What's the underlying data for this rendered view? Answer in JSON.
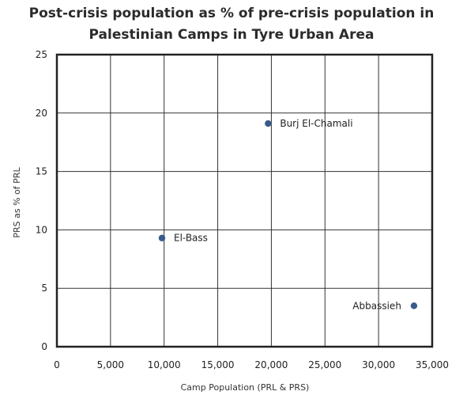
{
  "chart_data": {
    "type": "scatter",
    "title_lines": [
      "Post-crisis population as % of pre-crisis population in",
      "Palestinian Camps in Tyre Urban Area"
    ],
    "xlabel": "Camp Population (PRL & PRS)",
    "ylabel": "PRS as % of PRL",
    "xlim": [
      0,
      35000
    ],
    "ylim": [
      0,
      25
    ],
    "x_ticks": [
      0,
      5000,
      10000,
      15000,
      20000,
      25000,
      30000,
      35000
    ],
    "x_tick_labels": [
      "0",
      "5,000",
      "10,000",
      "15,000",
      "20,000",
      "25,000",
      "30,000",
      "35,000"
    ],
    "y_ticks": [
      0,
      5,
      10,
      15,
      20,
      25
    ],
    "y_tick_labels": [
      "0",
      "5",
      "10",
      "15",
      "20",
      "25"
    ],
    "grid": true,
    "marker_color": "#3a5a8c",
    "points": [
      {
        "label": "Burj El-Chamali",
        "x": 19700,
        "y": 19.1,
        "label_side": "right"
      },
      {
        "label": "El-Bass",
        "x": 9800,
        "y": 9.3,
        "label_side": "right"
      },
      {
        "label": "Abbassieh",
        "x": 33300,
        "y": 3.5,
        "label_side": "left"
      }
    ]
  }
}
